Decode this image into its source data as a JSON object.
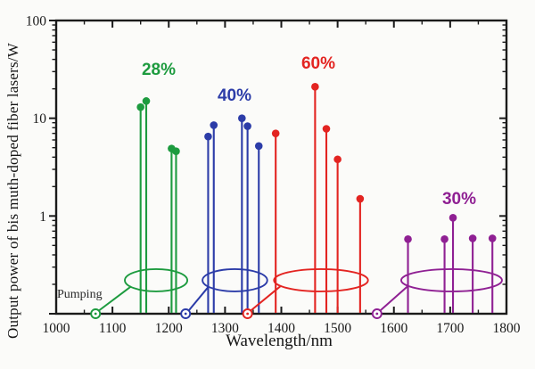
{
  "figure": {
    "background": "#fbfbf9",
    "axis_color": "#1a1a1a"
  },
  "labels": {
    "y_axis_title": "Output power of bis muth-doped fiber lasers/W",
    "x_axis_title": "Wavelength/nm",
    "pumping": "Pumping"
  },
  "chart_data": {
    "type": "scatter",
    "variant": "stem-plot-log-y",
    "title": "",
    "xlabel": "Wavelength/nm",
    "ylabel": "Output power of bis muth-doped fiber lasers/W",
    "x_range": [
      1000,
      1800
    ],
    "x_major_tick_step": 100,
    "x_minor_tick_step": 50,
    "x_tick_labels": [
      "1000",
      "1100",
      "1200",
      "1300",
      "1400",
      "1500",
      "1600",
      "1700",
      "1800"
    ],
    "y_scale": "log",
    "y_range": [
      0.1,
      100
    ],
    "y_tick_values": [
      1,
      10,
      100
    ],
    "y_tick_labels": [
      "1",
      "10",
      "100"
    ],
    "grid": false,
    "legend": "none",
    "series": [
      {
        "name": "28%",
        "color": "#1d9b3f",
        "pump_wavelength_nm": 1070,
        "pump_band_nm": [
          1122,
          1233
        ],
        "pump_band_level_w": 0.22,
        "points": [
          {
            "wavelength_nm": 1150,
            "power_w": 13
          },
          {
            "wavelength_nm": 1160,
            "power_w": 15
          },
          {
            "wavelength_nm": 1205,
            "power_w": 4.9
          },
          {
            "wavelength_nm": 1213,
            "power_w": 4.6
          }
        ]
      },
      {
        "name": "40%",
        "color": "#2c3ca8",
        "pump_wavelength_nm": 1230,
        "pump_band_nm": [
          1260,
          1375
        ],
        "pump_band_level_w": 0.22,
        "points": [
          {
            "wavelength_nm": 1270,
            "power_w": 6.5
          },
          {
            "wavelength_nm": 1280,
            "power_w": 8.5
          },
          {
            "wavelength_nm": 1330,
            "power_w": 10
          },
          {
            "wavelength_nm": 1340,
            "power_w": 8.3
          },
          {
            "wavelength_nm": 1360,
            "power_w": 5.2
          }
        ]
      },
      {
        "name": "60%",
        "color": "#e32421",
        "pump_wavelength_nm": 1340,
        "pump_band_nm": [
          1387,
          1554
        ],
        "pump_band_level_w": 0.22,
        "points": [
          {
            "wavelength_nm": 1390,
            "power_w": 7
          },
          {
            "wavelength_nm": 1460,
            "power_w": 21
          },
          {
            "wavelength_nm": 1480,
            "power_w": 7.8
          },
          {
            "wavelength_nm": 1500,
            "power_w": 3.8
          },
          {
            "wavelength_nm": 1540,
            "power_w": 1.5
          }
        ]
      },
      {
        "name": "30%",
        "color": "#8f2093",
        "pump_wavelength_nm": 1570,
        "pump_band_nm": [
          1613,
          1792
        ],
        "pump_band_level_w": 0.22,
        "points": [
          {
            "wavelength_nm": 1625,
            "power_w": 0.58
          },
          {
            "wavelength_nm": 1690,
            "power_w": 0.58
          },
          {
            "wavelength_nm": 1705,
            "power_w": 0.96
          },
          {
            "wavelength_nm": 1740,
            "power_w": 0.59
          },
          {
            "wavelength_nm": 1775,
            "power_w": 0.59
          }
        ]
      }
    ],
    "annotations": [
      {
        "text": "Pumping",
        "near_nm": 1005,
        "near_w": 0.15
      }
    ]
  }
}
